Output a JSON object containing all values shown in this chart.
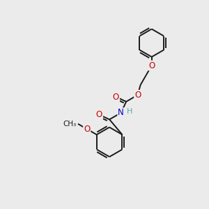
{
  "background_color": "#ebebeb",
  "bond_color": "#1a1a1a",
  "atom_colors": {
    "O": "#cc0000",
    "N": "#0000cc",
    "H": "#5aacac",
    "C": "#1a1a1a"
  },
  "figsize": [
    3.0,
    3.0
  ],
  "dpi": 100,
  "bond_lw": 1.4,
  "font_size": 8.5
}
